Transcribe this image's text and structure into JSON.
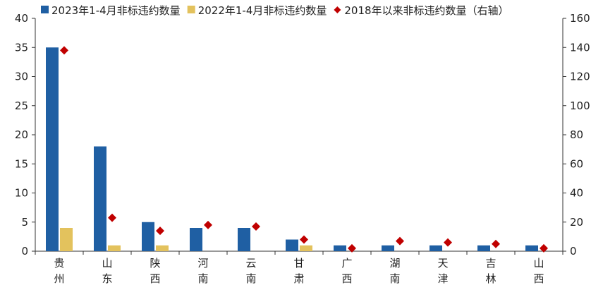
{
  "chart_data": {
    "type": "bar",
    "categories": [
      "贵州",
      "山东",
      "陕西",
      "河南",
      "云南",
      "甘肃",
      "广西",
      "湖南",
      "天津",
      "吉林",
      "山西"
    ],
    "series": [
      {
        "name": "2023年1-4月非标违约数量",
        "kind": "bar",
        "axis": "left",
        "color": "#1f5fa3",
        "values": [
          35,
          18,
          5,
          4,
          4,
          2,
          1,
          1,
          1,
          1,
          1
        ]
      },
      {
        "name": "2022年1-4月非标违约数量",
        "kind": "bar",
        "axis": "left",
        "color": "#e3c25d",
        "values": [
          4,
          1,
          1,
          0,
          0,
          1,
          0,
          0,
          0,
          0,
          0
        ]
      },
      {
        "name": "2018年以来非标违约数量（右轴）",
        "kind": "scatter",
        "marker": "diamond",
        "axis": "right",
        "color": "#c00000",
        "values": [
          138,
          23,
          14,
          18,
          17,
          8,
          2,
          7,
          6,
          5,
          2
        ]
      }
    ],
    "y_left": {
      "min": 0,
      "max": 40,
      "ticks": [
        0,
        5,
        10,
        15,
        20,
        25,
        30,
        35,
        40
      ]
    },
    "y_right": {
      "min": 0,
      "max": 160,
      "ticks": [
        0,
        20,
        40,
        60,
        80,
        100,
        120,
        140,
        160
      ]
    },
    "legend_position": "top",
    "grid": false,
    "title": "",
    "xlabel": "",
    "ylabel": ""
  }
}
